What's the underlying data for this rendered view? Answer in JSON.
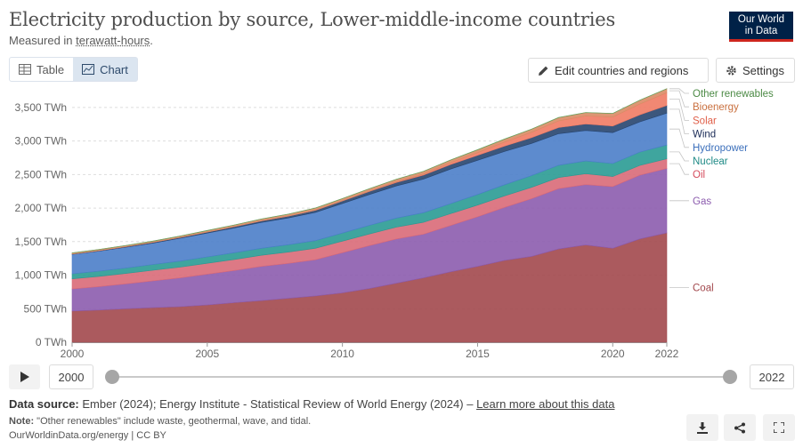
{
  "header": {
    "title": "Electricity production by source, Lower-middle-income countries",
    "subtitle_prefix": "Measured in ",
    "subtitle_unit": "terawatt-hours",
    "subtitle_suffix": ".",
    "logo_line1": "Our World",
    "logo_line2": "in Data"
  },
  "toolbar": {
    "tab_table": "Table",
    "tab_chart": "Chart",
    "active_tab": "Chart",
    "edit_label": "Edit countries and regions",
    "settings_label": "Settings"
  },
  "timeline": {
    "start_year": "2000",
    "end_year": "2022"
  },
  "footer": {
    "source_label": "Data source:",
    "source_text": "Ember (2024); Energy Institute - Statistical Review of World Energy (2024) – ",
    "source_link": "Learn more about this data",
    "note_label": "Note:",
    "note_text": "\"Other renewables\" include waste, geothermal, wave, and tidal.",
    "url": "OurWorldinData.org/energy | CC BY"
  },
  "icons": {
    "table": "table-icon",
    "chart": "chart-icon",
    "edit": "pencil-icon",
    "settings": "gear-icon",
    "play": "play-icon",
    "download": "download-icon",
    "share": "share-icon",
    "fullscreen": "fullscreen-icon"
  },
  "chart_data": {
    "type": "area",
    "stacked": true,
    "ylim": [
      0,
      3750
    ],
    "xlim": [
      2000,
      2022
    ],
    "y_ticks": [
      0,
      500,
      1000,
      1500,
      2000,
      2500,
      3000,
      3500
    ],
    "y_tick_labels": [
      "0 TWh",
      "500 TWh",
      "1,000 TWh",
      "1,500 TWh",
      "2,000 TWh",
      "2,500 TWh",
      "3,000 TWh",
      "3,500 TWh"
    ],
    "x_ticks": [
      2000,
      2005,
      2010,
      2015,
      2020,
      2022
    ],
    "x_tick_labels": [
      "2000",
      "2005",
      "2010",
      "2015",
      "2020",
      "2022"
    ],
    "grid": "horizontal dashed",
    "legend": "right, inline labels",
    "x": [
      2000,
      2001,
      2002,
      2003,
      2004,
      2005,
      2006,
      2007,
      2008,
      2009,
      2010,
      2011,
      2012,
      2013,
      2014,
      2015,
      2016,
      2017,
      2018,
      2019,
      2020,
      2021,
      2022
    ],
    "series": [
      {
        "name": "Coal",
        "color": "#a2484d",
        "label_color": "#a2484d",
        "values": [
          465,
          480,
          500,
          515,
          530,
          555,
          590,
          620,
          655,
          690,
          735,
          800,
          880,
          960,
          1050,
          1130,
          1220,
          1280,
          1390,
          1450,
          1400,
          1540,
          1630
        ]
      },
      {
        "name": "Gas",
        "color": "#8c5cae",
        "label_color": "#8c5cae",
        "values": [
          330,
          350,
          370,
          400,
          430,
          460,
          480,
          510,
          520,
          540,
          600,
          640,
          660,
          650,
          690,
          740,
          790,
          860,
          900,
          900,
          920,
          950,
          960
        ]
      },
      {
        "name": "Oil",
        "color": "#d96a78",
        "label_color": "#d54b5c",
        "values": [
          150,
          152,
          155,
          158,
          160,
          162,
          164,
          166,
          168,
          170,
          172,
          174,
          176,
          178,
          176,
          174,
          172,
          170,
          166,
          162,
          150,
          145,
          145
        ]
      },
      {
        "name": "Nuclear",
        "color": "#2a9b93",
        "label_color": "#1f8a86",
        "values": [
          75,
          78,
          82,
          86,
          90,
          95,
          100,
          105,
          110,
          115,
          120,
          128,
          135,
          143,
          150,
          158,
          166,
          174,
          182,
          190,
          194,
          200,
          205
        ]
      },
      {
        "name": "Hydropower",
        "color": "#4b7ec9",
        "label_color": "#3b6fbb",
        "values": [
          290,
          300,
          310,
          320,
          340,
          355,
          370,
          385,
          400,
          420,
          440,
          460,
          480,
          500,
          515,
          510,
          495,
          480,
          470,
          455,
          460,
          450,
          475
        ]
      },
      {
        "name": "Wind",
        "color": "#27456f",
        "label_color": "#1b2c57",
        "values": [
          5,
          6,
          8,
          10,
          12,
          15,
          18,
          22,
          26,
          32,
          38,
          45,
          52,
          60,
          68,
          74,
          80,
          86,
          92,
          96,
          98,
          105,
          115
        ]
      },
      {
        "name": "Solar",
        "color": "#f07b64",
        "label_color": "#e0604a",
        "values": [
          0,
          0,
          0,
          0,
          0,
          0,
          0,
          1,
          1,
          2,
          3,
          6,
          10,
          16,
          26,
          40,
          60,
          80,
          100,
          120,
          135,
          160,
          190
        ]
      },
      {
        "name": "Bioenergy",
        "color": "#d98b65",
        "label_color": "#c9703f",
        "values": [
          15,
          16,
          17,
          18,
          20,
          22,
          24,
          26,
          28,
          30,
          32,
          34,
          36,
          38,
          40,
          42,
          44,
          46,
          48,
          50,
          52,
          55,
          58
        ]
      },
      {
        "name": "Other renewables",
        "color": "#6aa360",
        "label_color": "#4c8a45",
        "values": [
          3,
          3,
          3,
          3,
          3,
          3,
          3,
          3,
          3,
          3,
          3,
          3,
          3,
          3,
          3,
          3,
          3,
          3,
          3,
          3,
          3,
          3,
          3
        ]
      }
    ]
  }
}
